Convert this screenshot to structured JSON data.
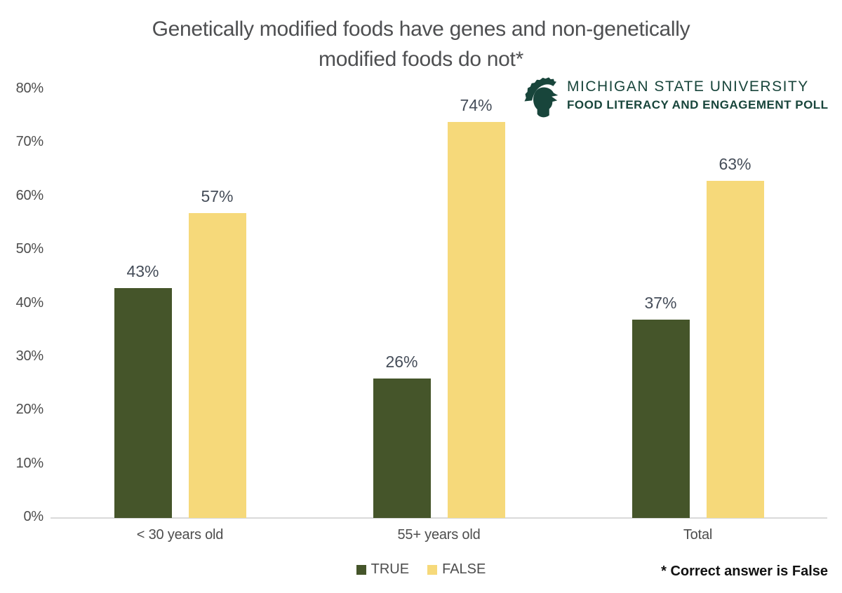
{
  "title_lines": [
    "Genetically modified foods have genes and non-genetically",
    "modified foods do not*"
  ],
  "logo": {
    "icon": "msu-spartan-helmet-icon",
    "org": "MICHIGAN STATE UNIVERSITY",
    "program": "FOOD LITERACY AND ENGAGEMENT POLL",
    "color": "#18453B"
  },
  "footnote": "* Correct answer is False",
  "colors": {
    "title_text": "#4e4f51",
    "axis_text": "#4d4d4d",
    "data_label_text": "#454D59",
    "baseline": "#d9d9d9",
    "true_bar": "#45552A",
    "false_bar": "#F6D97A",
    "msu_green": "#18453B"
  },
  "chart_data": {
    "type": "bar",
    "title": "Genetically modified foods have genes and non-genetically modified foods do not*",
    "categories": [
      "< 30 years old",
      "55+ years old",
      "Total"
    ],
    "series": [
      {
        "name": "TRUE",
        "color": "#45552A",
        "values": [
          43,
          26,
          37
        ]
      },
      {
        "name": "FALSE",
        "color": "#F6D97A",
        "values": [
          57,
          74,
          63
        ]
      }
    ],
    "value_suffix": "%",
    "ylim": [
      0,
      80
    ],
    "yticks": [
      {
        "value": 0,
        "label": "0%"
      },
      {
        "value": 10,
        "label": "10%"
      },
      {
        "value": 20,
        "label": "20%"
      },
      {
        "value": 30,
        "label": "30%"
      },
      {
        "value": 40,
        "label": "40%"
      },
      {
        "value": 50,
        "label": "50%"
      },
      {
        "value": 60,
        "label": "60%"
      },
      {
        "value": 70,
        "label": "70%"
      },
      {
        "value": 80,
        "label": "80%"
      }
    ],
    "grid": false,
    "data_labels": true,
    "legend_position": "bottom"
  }
}
